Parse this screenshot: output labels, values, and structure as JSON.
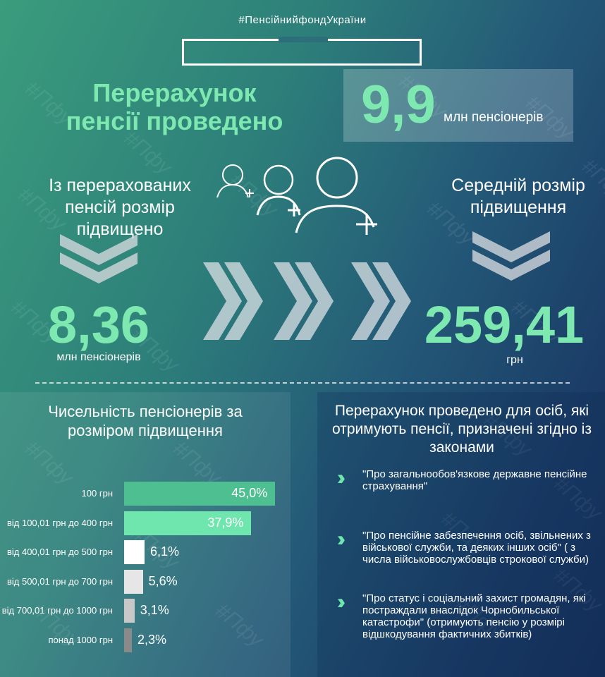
{
  "header": {
    "hashtag": "#ПенсійнийфондУкраїни",
    "watermark": "#Пфу"
  },
  "title": "Перерахунок пенсії проведено",
  "total": {
    "value": "9,9",
    "unit": "млн пенсіонерів"
  },
  "increased": {
    "heading": "Із перерахованих пенсій розмір підвищено",
    "value": "8,36",
    "unit": "млн пенсіонерів"
  },
  "average": {
    "heading": "Середній розмір підвищення",
    "value": "259,41",
    "unit": "грн"
  },
  "colors": {
    "accent": "#7de8b0"
  },
  "chart_data": {
    "type": "bar",
    "orientation": "horizontal",
    "title": "Чисельність пенсіонерів за розміром підвищення",
    "categories": [
      "100 грн",
      "від 100,01 грн до 400 грн",
      "від 400,01 грн до 500 грн",
      "від 500,01 грн до 700 грн",
      "від 700,01 грн до 1000 грн",
      "понад 1000 грн"
    ],
    "values": [
      45.0,
      37.9,
      6.1,
      5.6,
      3.1,
      2.3
    ],
    "labels": [
      "45,0%",
      "37,9%",
      "6,1%",
      "5,6%",
      "3,1%",
      "2,3%"
    ],
    "colors": [
      "#4ebf91",
      "#6fe6ae",
      "#ffffff",
      "#e6e6e6",
      "#c8c8c8",
      "#8a8a8a"
    ]
  },
  "laws": {
    "heading": "Перерахунок проведено для осіб, які отримують пенсії, призначені згідно із законами",
    "items": [
      "\"Про загальнообов'язкове державне пенсійне страхування\"",
      "\"Про пенсійне забезпечення осіб, звільнених з військової служби, та деяких інших осіб\" ( з числа військовослужбовців строкової служби)",
      "\"Про статус і соціальний захист громадян, які постраждали внаслідок Чорнобильської катастрофи\" (отримують пенсію у розмірі відшкодування фактичних збитків)"
    ]
  }
}
